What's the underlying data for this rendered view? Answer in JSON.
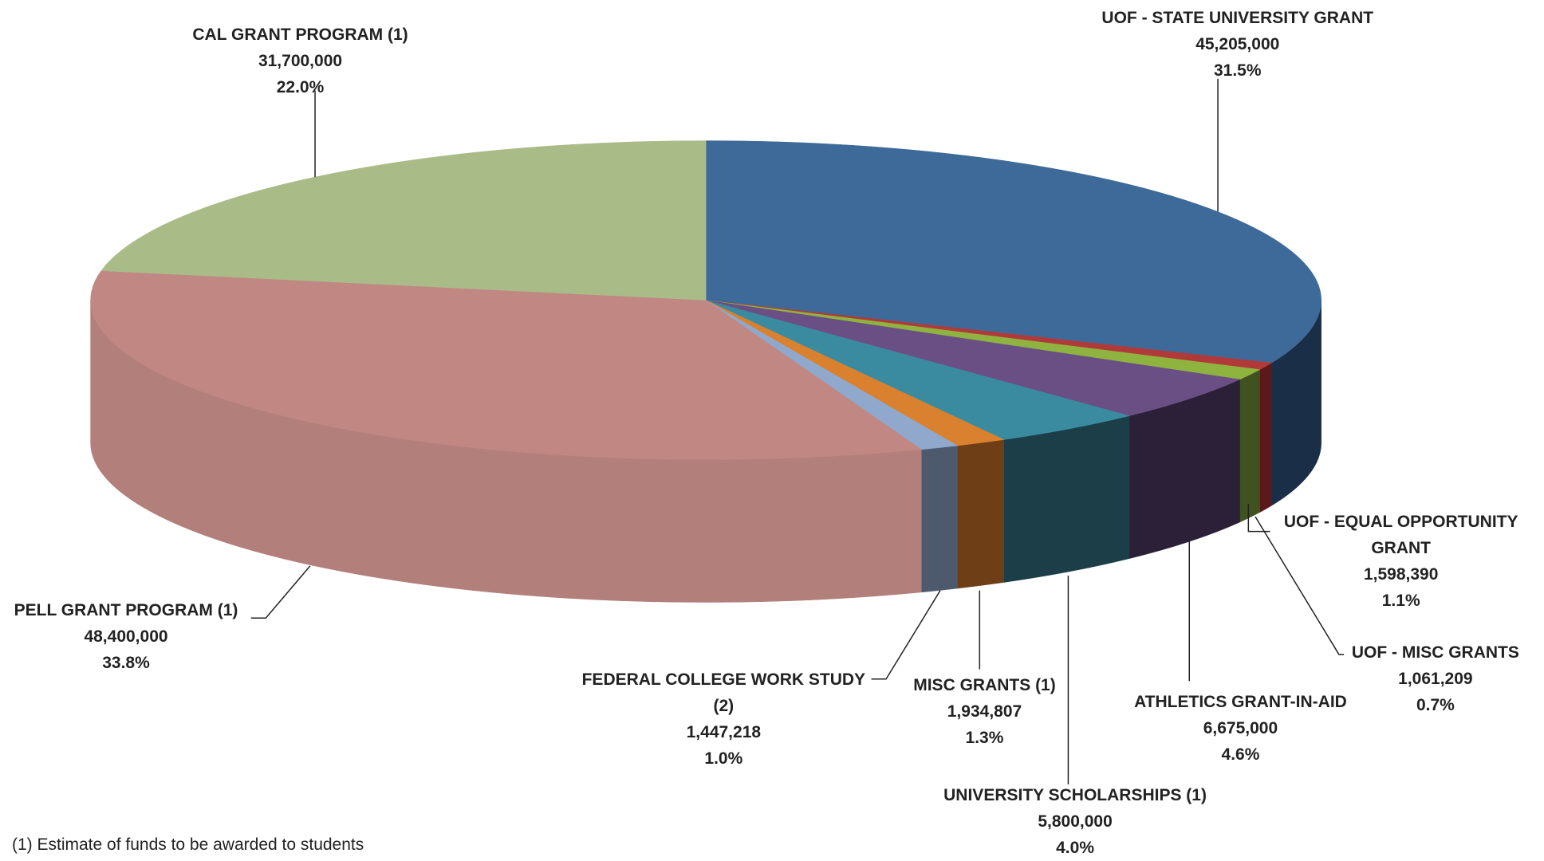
{
  "chart_data": {
    "type": "pie3d",
    "categories": [
      "UOF - STATE UNIVERSITY GRANT",
      "UOF - MISC GRANTS",
      "UOF - EQUAL OPPORTUNITY GRANT",
      "ATHLETICS GRANT-IN-AID",
      "UNIVERSITY SCHOLARSHIPS (1)",
      "MISC GRANTS (1)",
      "FEDERAL COLLEGE WORK STUDY (2)",
      "PELL GRANT PROGRAM (1)",
      "CAL GRANT PROGRAM (1)"
    ],
    "values": [
      45205000,
      1061209,
      1598390,
      6675000,
      5800000,
      1934807,
      1447218,
      48400000,
      31700000
    ],
    "value_labels": [
      "45,205,000",
      "1,061,209",
      "1,598,390",
      "6,675,000",
      "5,800,000",
      "1,934,807",
      "1,447,218",
      "48,400,000",
      "31,700,000"
    ],
    "percent_labels": [
      "31.5%",
      "0.7%",
      "1.1%",
      "4.6%",
      "4.0%",
      "1.3%",
      "1.0%",
      "33.8%",
      "22.0%"
    ],
    "colors": [
      "#3e6a99",
      "#b03a3a",
      "#8fb33f",
      "#6a4f85",
      "#3a8ba0",
      "#d9812f",
      "#8fa8cc",
      "#c08783",
      "#a9bc88"
    ],
    "side_colors": [
      "#1b2e48",
      "#5a1a1a",
      "#3f5220",
      "#2c1f38",
      "#1b3e48",
      "#6e3e17",
      "#4d5a6e",
      "#b27f7b",
      "#5f6b4c"
    ],
    "note": "(1) Estimate of funds to be awarded to students"
  }
}
